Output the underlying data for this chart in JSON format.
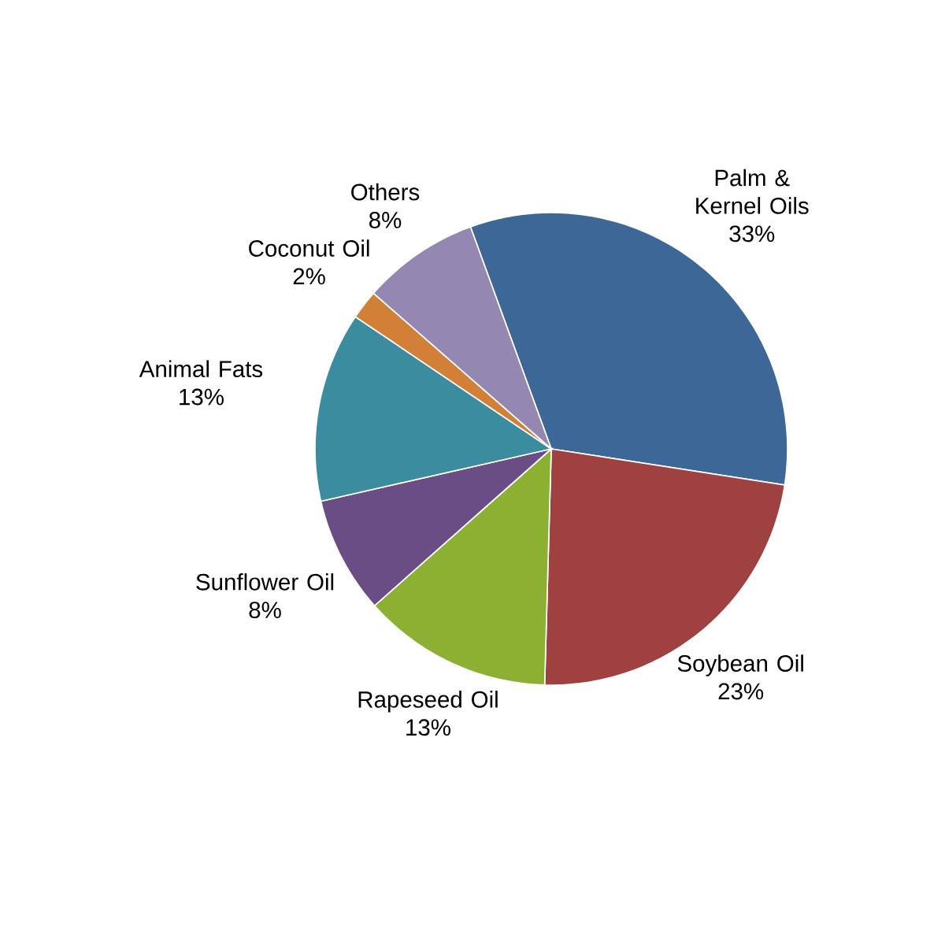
{
  "chart_data": {
    "type": "pie",
    "categories": [
      "Palm & Kernel Oils",
      "Soybean Oil",
      "Rapeseed Oil",
      "Sunflower Oil",
      "Animal Fats",
      "Coconut Oil",
      "Others"
    ],
    "values": [
      33,
      23,
      13,
      8,
      13,
      2,
      8
    ],
    "colors": [
      "#3d6796",
      "#9e4140",
      "#8cb032",
      "#6b4d86",
      "#3a8c9e",
      "#d27f38",
      "#9488b3"
    ],
    "value_labels": [
      "33%",
      "23%",
      "13%",
      "8%",
      "13%",
      "2%",
      "8%"
    ]
  }
}
